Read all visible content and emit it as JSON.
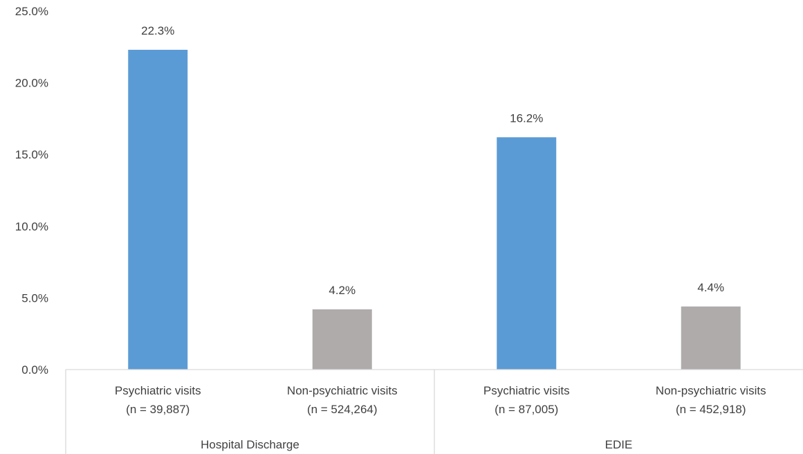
{
  "chart_data": {
    "type": "bar",
    "title": "",
    "xlabel": "",
    "ylabel": "",
    "ylim": [
      0,
      25
    ],
    "yticks": [
      "0.0%",
      "5.0%",
      "10.0%",
      "15.0%",
      "20.0%",
      "25.0%"
    ],
    "ytick_values": [
      0,
      5,
      10,
      15,
      20,
      25
    ],
    "grid": false,
    "legend": "none",
    "groups": [
      {
        "label": "Hospital Discharge",
        "bars": [
          {
            "label": "Psychiatric visits",
            "sublabel": "(n = 39,887)",
            "value": 22.3,
            "value_label": "22.3%",
            "color": "#5b9bd5"
          },
          {
            "label": "Non-psychiatric visits",
            "sublabel": "(n = 524,264)",
            "value": 4.2,
            "value_label": "4.2%",
            "color": "#afabab"
          }
        ]
      },
      {
        "label": "EDIE",
        "bars": [
          {
            "label": "Psychiatric visits",
            "sublabel": "(n = 87,005)",
            "value": 16.2,
            "value_label": "16.2%",
            "color": "#5b9bd5"
          },
          {
            "label": "Non-psychiatric visits",
            "sublabel": "(n = 452,918)",
            "value": 4.4,
            "value_label": "4.4%",
            "color": "#afabab"
          }
        ]
      }
    ]
  }
}
